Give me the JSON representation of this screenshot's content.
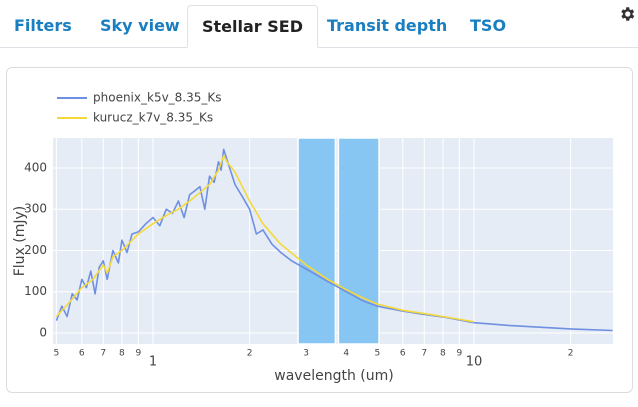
{
  "tabs": [
    {
      "label": "Filters"
    },
    {
      "label": "Sky view"
    },
    {
      "label": "Stellar SED",
      "active": true
    },
    {
      "label": "Transit depth"
    },
    {
      "label": "TSO"
    }
  ],
  "chart_data": {
    "type": "line",
    "xlabel": "wavelength (um)",
    "ylabel": "Flux (mJy)",
    "xscale": "log",
    "xlim": [
      0.488,
      27.1
    ],
    "ylim": [
      -26.7,
      472.7
    ],
    "xticks": [
      {
        "value": 0.5,
        "label": "5"
      },
      {
        "value": 0.6,
        "label": "6"
      },
      {
        "value": 0.7,
        "label": "7"
      },
      {
        "value": 0.8,
        "label": "8"
      },
      {
        "value": 0.9,
        "label": "9"
      },
      1,
      {
        "value": 2,
        "label": "2"
      },
      {
        "value": 3,
        "label": "3"
      },
      {
        "value": 4,
        "label": "4"
      },
      {
        "value": 5,
        "label": "5"
      },
      {
        "value": 6,
        "label": "6"
      },
      {
        "value": 7,
        "label": "7"
      },
      {
        "value": 8,
        "label": "8"
      },
      {
        "value": 9,
        "label": "9"
      },
      10,
      {
        "value": 20,
        "label": "2"
      }
    ],
    "yticks": [
      0,
      100,
      200,
      300,
      400
    ],
    "grid": true,
    "legend": "top-left",
    "background": "#e5ecf6",
    "bands": [
      [
        2.83,
        3.7
      ],
      [
        3.78,
        5.06
      ]
    ],
    "band_color": "#87c6f3",
    "series": [
      {
        "name": "phoenix_k5v_8.35_Ks",
        "color": "#6f8fe2",
        "x": [
          0.5,
          0.52,
          0.54,
          0.56,
          0.58,
          0.6,
          0.62,
          0.64,
          0.66,
          0.68,
          0.7,
          0.72,
          0.75,
          0.78,
          0.8,
          0.83,
          0.86,
          0.9,
          0.95,
          1.0,
          1.05,
          1.1,
          1.15,
          1.2,
          1.25,
          1.3,
          1.35,
          1.4,
          1.45,
          1.5,
          1.55,
          1.6,
          1.63,
          1.66,
          1.7,
          1.75,
          1.8,
          1.9,
          2.0,
          2.1,
          2.2,
          2.35,
          2.5,
          2.7,
          3.0,
          3.5,
          4.0,
          4.5,
          5.0,
          6.0,
          7.0,
          8.0,
          10,
          13,
          16,
          20,
          27
        ],
        "values": [
          30,
          65,
          40,
          95,
          80,
          130,
          110,
          150,
          95,
          160,
          175,
          130,
          200,
          170,
          225,
          195,
          240,
          245,
          265,
          280,
          260,
          300,
          290,
          320,
          280,
          335,
          345,
          355,
          300,
          380,
          365,
          415,
          395,
          445,
          420,
          390,
          360,
          330,
          300,
          240,
          250,
          215,
          195,
          175,
          155,
          125,
          100,
          78,
          65,
          53,
          45,
          39,
          25,
          18,
          14,
          10,
          6
        ]
      },
      {
        "name": "kurucz_k7v_8.35_Ks",
        "color": "#f5d83a",
        "x": [
          0.5,
          0.55,
          0.6,
          0.65,
          0.7,
          0.72,
          0.75,
          0.8,
          0.9,
          1.0,
          1.1,
          1.2,
          1.3,
          1.4,
          1.5,
          1.6,
          1.66,
          1.7,
          1.8,
          2.0,
          2.2,
          2.5,
          3.0,
          3.5,
          4.0,
          4.5,
          5.0,
          6.0,
          7.0,
          8.0,
          10
        ],
        "values": [
          40,
          75,
          110,
          130,
          165,
          145,
          185,
          200,
          240,
          265,
          285,
          300,
          320,
          340,
          360,
          395,
          430,
          415,
          390,
          320,
          265,
          215,
          165,
          130,
          105,
          85,
          70,
          55,
          47,
          40,
          27
        ]
      }
    ]
  }
}
